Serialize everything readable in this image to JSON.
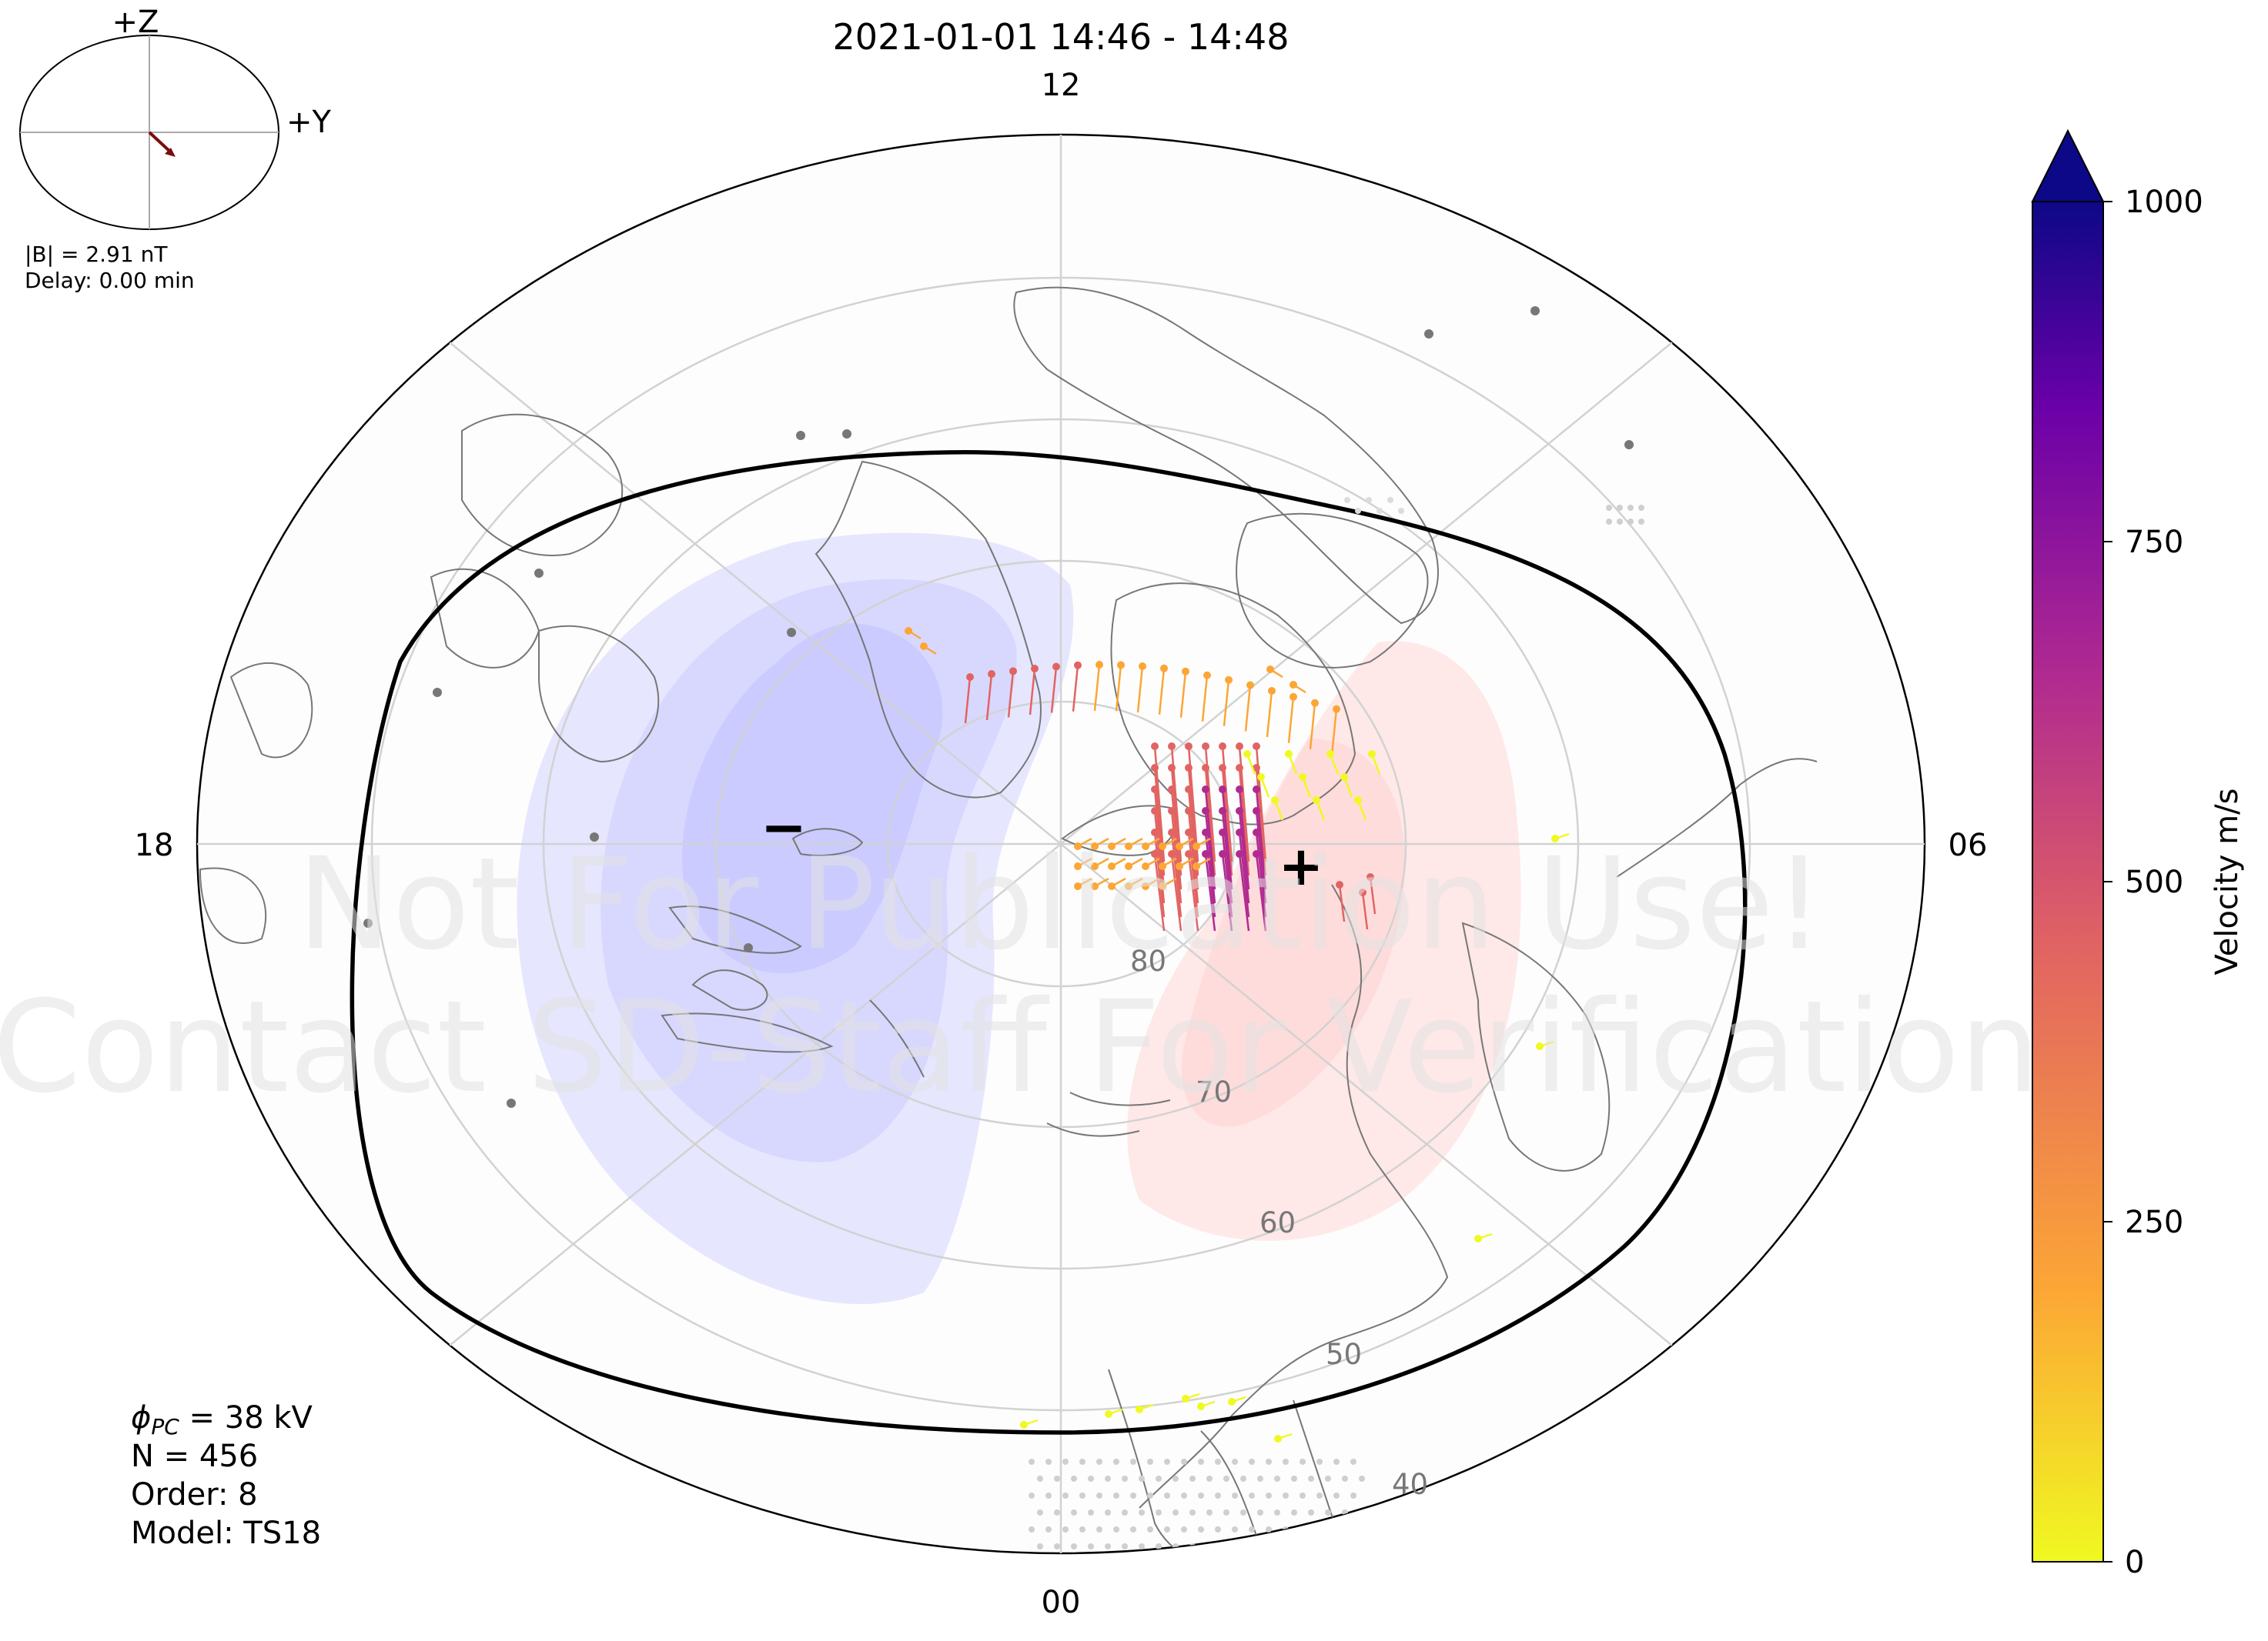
{
  "title": "2021-01-01 14:46 - 14:48",
  "mlt_labels": {
    "top": "12",
    "bottom": "00",
    "left": "18",
    "right": "06"
  },
  "lat_labels": [
    "80",
    "70",
    "60",
    "50",
    "40"
  ],
  "imf_clock": {
    "z_label": "+Z",
    "y_label": "+Y",
    "b_text": "|B| = 2.91 nT",
    "delay_text": "Delay: 0.00 min",
    "vector_color": "#7a0d0d"
  },
  "watermark": {
    "line1": "Not For Publication Use!",
    "line2": "Contact SD-Staff For Verification"
  },
  "markers": {
    "min": "−",
    "max": "+"
  },
  "stats": {
    "phi_symbol": "ϕ",
    "phi_sub": "PC",
    "phi_value": " = 38 kV",
    "n_text": "N = 456",
    "order_text": "Order: 8",
    "model_text": "Model: TS18"
  },
  "colorbar": {
    "label": "Velocity m/s",
    "ticks": [
      "0",
      "250",
      "500",
      "750",
      "1000"
    ],
    "colormap": "plasma_r",
    "range": [
      0,
      1000
    ],
    "colors": [
      "#f0f921",
      "#fca636",
      "#e16462",
      "#b12a90",
      "#6a00a8",
      "#0d0887"
    ]
  },
  "colors": {
    "negative_contour": "#cfd0ff",
    "positive_contour": "#ffdcdc",
    "grid": "#d2d2d2",
    "coast": "#777777",
    "boundary": "#000000"
  }
}
